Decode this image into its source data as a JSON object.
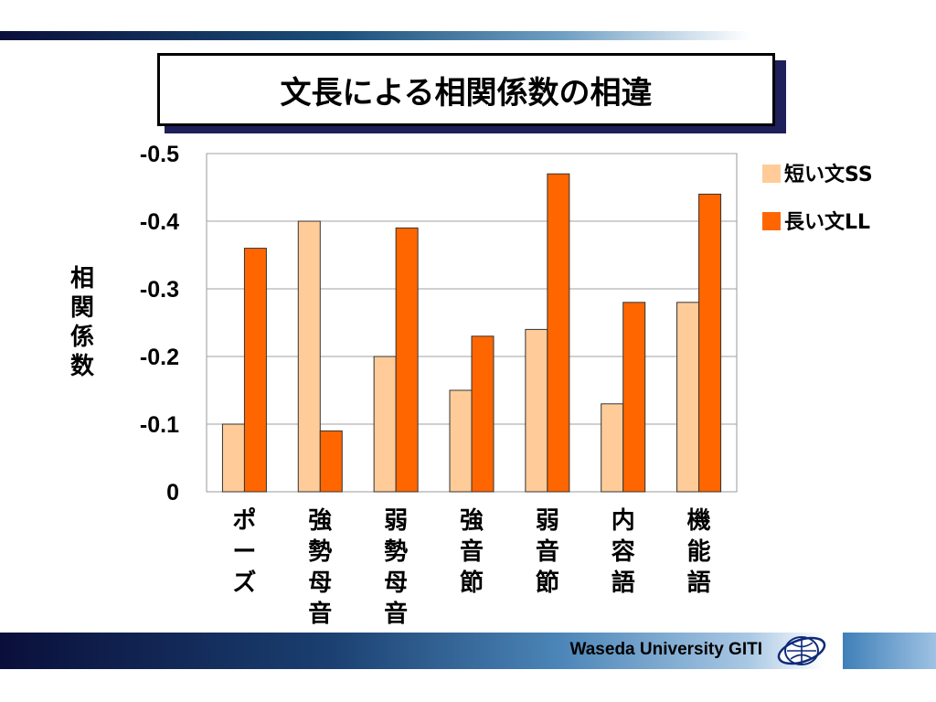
{
  "title": "文長による相関係数の相違",
  "footer": "Waseda University GITI",
  "logo_icon": "globe-logo-icon",
  "chart_data": {
    "type": "bar",
    "ylabel": "相関係数",
    "xlabel": "",
    "categories": [
      "ポーズ",
      "強勢母音",
      "弱勢母音",
      "強音節",
      "弱音節",
      "内容語",
      "機能語"
    ],
    "series": [
      {
        "name": "短い文SS",
        "color": "#ffcc99",
        "values": [
          -0.1,
          -0.4,
          -0.2,
          -0.15,
          -0.24,
          -0.13,
          -0.28
        ]
      },
      {
        "name": "長い文LL",
        "color": "#ff6600",
        "values": [
          -0.36,
          -0.09,
          -0.39,
          -0.23,
          -0.47,
          -0.28,
          -0.44
        ]
      }
    ],
    "ylim": [
      0,
      -0.5
    ],
    "yticks": [
      "0",
      "-0.1",
      "-0.2",
      "-0.3",
      "-0.4",
      "-0.5"
    ],
    "ytick_values": [
      0,
      -0.1,
      -0.2,
      -0.3,
      -0.4,
      -0.5
    ],
    "grid": true,
    "legend_position": "right"
  }
}
